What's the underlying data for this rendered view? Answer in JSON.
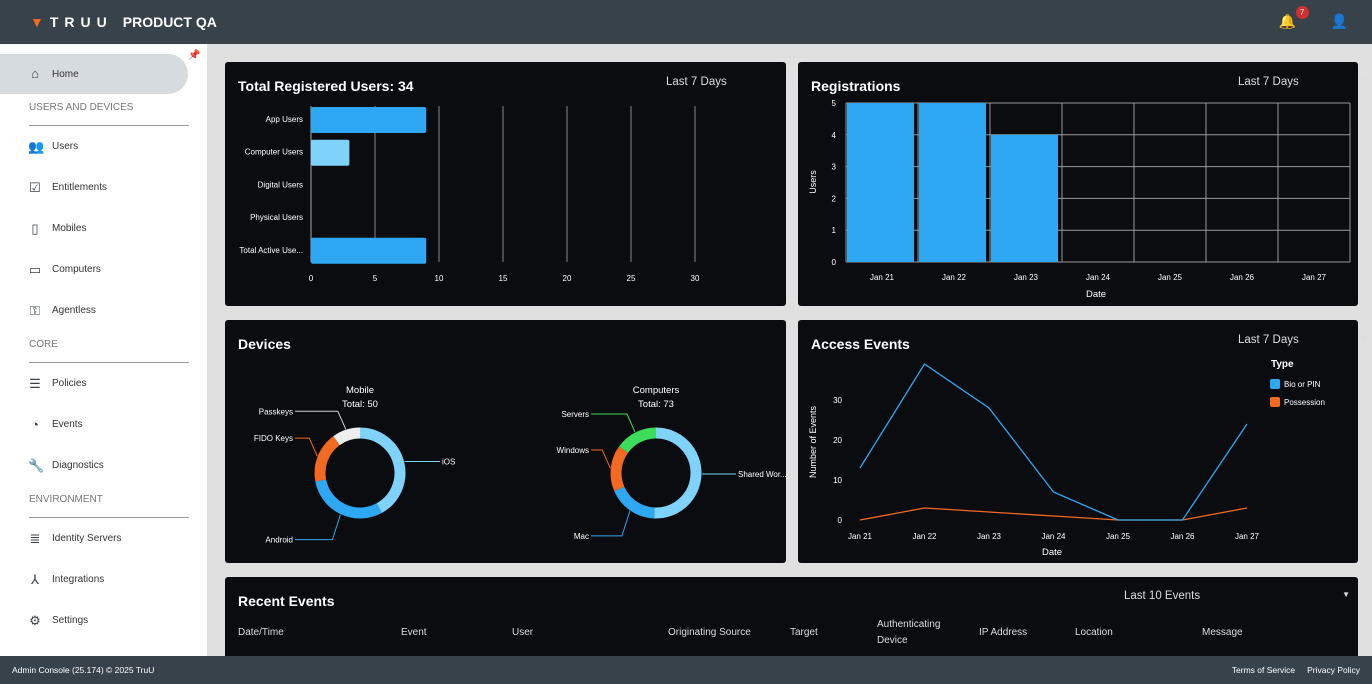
{
  "header": {
    "brand": "TRUU",
    "title": "PRODUCT QA",
    "notifications": "7"
  },
  "sidebar": {
    "home": "Home",
    "sections": [
      {
        "title": "USERS AND DEVICES",
        "items": [
          "Users",
          "Entitlements",
          "Mobiles",
          "Computers",
          "Agentless"
        ]
      },
      {
        "title": "CORE",
        "items": [
          "Policies",
          "Events",
          "Diagnostics"
        ]
      },
      {
        "title": "ENVIRONMENT",
        "items": [
          "Identity Servers",
          "Integrations",
          "Settings"
        ]
      }
    ]
  },
  "cards": {
    "users": {
      "title": "Total Registered Users: 34",
      "range": "Last 7 Days"
    },
    "registrations": {
      "title": "Registrations",
      "range": "Last 7 Days"
    },
    "devices": {
      "title": "Devices"
    },
    "access": {
      "title": "Access Events",
      "range": "Last 7 Days"
    },
    "recent": {
      "title": "Recent Events",
      "range": "Last 10 Events",
      "columns": [
        "Date/Time",
        "Event",
        "User",
        "Originating Source",
        "Target",
        "Authenticating Device",
        "IP Address",
        "Location",
        "Message"
      ]
    }
  },
  "footer": {
    "left": "Admin Console (25.174) © 2025 TruU",
    "terms": "Terms of Service",
    "privacy": "Privacy Policy"
  },
  "chart_data": [
    {
      "type": "bar",
      "orientation": "horizontal",
      "title": "Total Registered Users: 34",
      "categories": [
        "App Users",
        "Computer Users",
        "Digital Users",
        "Physical Users",
        "Total Active Use..."
      ],
      "values": [
        9,
        3,
        0,
        0,
        9
      ],
      "colors": [
        "#2ea8f2",
        "#7fd3fb",
        "#2ea8f2",
        "#2ea8f2",
        "#2ea8f2"
      ],
      "xlim": [
        0,
        34
      ],
      "xticks": [
        0,
        5,
        10,
        15,
        20,
        25,
        30
      ]
    },
    {
      "type": "bar",
      "title": "Registrations",
      "categories": [
        "Jan 21",
        "Jan 22",
        "Jan 23",
        "Jan 24",
        "Jan 25",
        "Jan 26",
        "Jan 27"
      ],
      "values": [
        5,
        5,
        4,
        0,
        0,
        0,
        0
      ],
      "xlabel": "Date",
      "ylabel": "Users",
      "ylim": [
        0,
        5
      ],
      "yticks": [
        0,
        1,
        2,
        3,
        4,
        5
      ],
      "color": "#2ea8f2"
    },
    {
      "type": "pie",
      "title": "Mobile",
      "subtitle": "Total: 50",
      "labels": [
        "iOS",
        "Android",
        "FIDO Keys",
        "Passkeys"
      ],
      "values": [
        21,
        15,
        9,
        5
      ],
      "colors": [
        "#7fd3fb",
        "#2ea8f2",
        "#f26a21",
        "#eeeeee"
      ]
    },
    {
      "type": "pie",
      "title": "Computers",
      "subtitle": "Total: 73",
      "labels": [
        "Shared Wor...",
        "Mac",
        "Windows",
        "Servers"
      ],
      "values": [
        37,
        13,
        12,
        11
      ],
      "colors": [
        "#7fd3fb",
        "#2ea8f2",
        "#f26a21",
        "#3ddc5a"
      ]
    },
    {
      "type": "line",
      "title": "Access Events",
      "x": [
        "Jan 21",
        "Jan 22",
        "Jan 23",
        "Jan 24",
        "Jan 25",
        "Jan 26",
        "Jan 27"
      ],
      "xlabel": "Date",
      "ylabel": "Number of Events",
      "ylim": [
        0,
        40
      ],
      "yticks": [
        0,
        10,
        20,
        30
      ],
      "legend_title": "Type",
      "legend": "top-right",
      "series": [
        {
          "name": "Bio or PIN",
          "values": [
            13,
            39,
            28,
            7,
            0,
            0,
            24
          ],
          "color": "#2ea8f2"
        },
        {
          "name": "Possession",
          "values": [
            0,
            3,
            2,
            1,
            0,
            0,
            3
          ],
          "color": "#f26a21"
        }
      ]
    }
  ]
}
